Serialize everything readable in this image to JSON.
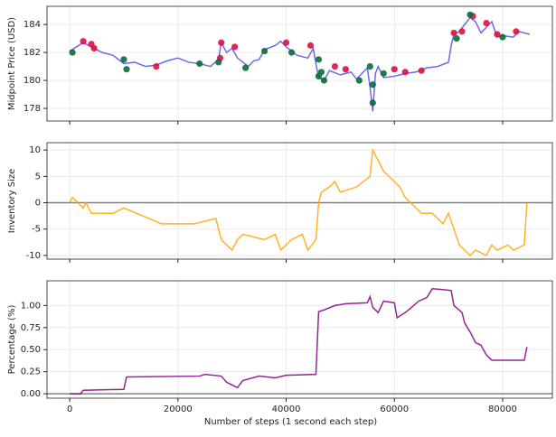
{
  "chart_data": [
    {
      "type": "line",
      "y_label": "Midpoint Price (USD)",
      "color": "#5050e8",
      "x": [
        0,
        2500,
        4000,
        6000,
        8000,
        10000,
        12000,
        14000,
        16000,
        18000,
        20000,
        22000,
        24000,
        26000,
        27500,
        28000,
        29000,
        30000,
        31000,
        32000,
        33000,
        34000,
        35000,
        36000,
        38000,
        39000,
        40000,
        41000,
        42000,
        44000,
        45000,
        45500,
        46000,
        47000,
        48000,
        50000,
        52000,
        53000,
        54000,
        55000,
        55500,
        56000,
        56500,
        57000,
        58000,
        60000,
        62000,
        64000,
        66000,
        68000,
        70000,
        70500,
        71000,
        72000,
        73000,
        74000,
        75000,
        76000,
        77000,
        78000,
        79000,
        80000,
        82000,
        83000,
        84000,
        85000
      ],
      "values": [
        182.1,
        182.7,
        182.4,
        182,
        181.8,
        181.2,
        181.3,
        181,
        181.1,
        181.4,
        181.6,
        181.3,
        181.2,
        181,
        181.5,
        182.7,
        182,
        182.3,
        181.6,
        181.3,
        181,
        181.4,
        181.5,
        182.2,
        182.5,
        182.8,
        182.4,
        182.1,
        181.8,
        181.6,
        182.3,
        181.2,
        180.2,
        180,
        180.7,
        180.4,
        180.6,
        180.1,
        180.5,
        180.9,
        179.5,
        177.8,
        180.5,
        181,
        180.2,
        180.3,
        180.5,
        180.6,
        180.9,
        181,
        181.3,
        182.5,
        183.3,
        183.5,
        184,
        184.5,
        184.2,
        183.4,
        183.8,
        184.2,
        183.1,
        183.2,
        183.1,
        183.5,
        183.4,
        183.3
      ],
      "markers": [
        {
          "color": "#dd1144",
          "x": [
            2500,
            4000,
            4500,
            16000,
            28000,
            27800,
            30500,
            40000,
            44500,
            49000,
            51000,
            60000,
            62000,
            65000,
            71000,
            72500,
            74500,
            77000,
            79000,
            82500
          ],
          "values": [
            182.8,
            182.6,
            182.3,
            181,
            182.7,
            181.6,
            182.4,
            182.7,
            182.5,
            181,
            180.8,
            180.8,
            180.6,
            180.7,
            183.4,
            183.5,
            184.6,
            184.1,
            183.3,
            183.5
          ]
        },
        {
          "color": "#0b6b3a",
          "x": [
            500,
            10000,
            10500,
            24000,
            27500,
            32500,
            36000,
            41000,
            46000,
            46500,
            46000,
            47000,
            53500,
            55500,
            56000,
            56000,
            58000,
            71500,
            74000,
            80000
          ],
          "values": [
            182,
            181.5,
            180.8,
            181.2,
            181.3,
            180.9,
            182.1,
            182,
            180.3,
            180.6,
            181.5,
            180,
            180,
            181,
            179.7,
            178.4,
            180.5,
            183,
            184.7,
            183.1
          ]
        }
      ],
      "xlim": [
        -4200,
        89200
      ],
      "ylim": [
        177.1,
        185.3
      ],
      "xticks": [
        0,
        20000,
        40000,
        60000,
        80000
      ],
      "yticks": [
        178,
        180,
        182,
        184
      ],
      "grid": true
    },
    {
      "type": "line",
      "y_label": "Inventory Size",
      "color": "#ffa500",
      "x": [
        0,
        500,
        2500,
        3000,
        4000,
        8000,
        10000,
        17000,
        23000,
        27000,
        28000,
        29000,
        30000,
        31000,
        32000,
        36000,
        38000,
        39000,
        40000,
        41000,
        43000,
        44000,
        45500,
        46000,
        46500,
        48000,
        49000,
        50000,
        53000,
        55500,
        56000,
        57000,
        58000,
        59000,
        60000,
        61000,
        62000,
        63000,
        64000,
        65000,
        67000,
        69000,
        70000,
        71000,
        72000,
        73000,
        74000,
        75000,
        77000,
        78000,
        79000,
        81000,
        82000,
        84000,
        84500
      ],
      "values": [
        0,
        1,
        -1,
        0,
        -2,
        -2,
        -1,
        -4,
        -4,
        -3,
        -7,
        -8,
        -9,
        -7,
        -6,
        -7,
        -6,
        -9,
        -8,
        -7,
        -6,
        -9,
        -7,
        0,
        2,
        3,
        4,
        2,
        3,
        5,
        10,
        8,
        6,
        5,
        4,
        3,
        1,
        0,
        -1,
        -2,
        -2,
        -4,
        -2,
        -5,
        -8,
        -9,
        -10,
        -9,
        -10,
        -8,
        -9,
        -8,
        -9,
        -8,
        0
      ],
      "hline": 0,
      "xlim": [
        -4200,
        89200
      ],
      "ylim": [
        -10.7,
        11.4
      ],
      "xticks": [
        0,
        20000,
        40000,
        60000,
        80000
      ],
      "yticks": [
        -10,
        -5,
        0,
        5,
        10
      ],
      "grid": true
    },
    {
      "type": "line",
      "y_label": "Percentage (%)",
      "x_label": "Number of steps (1 second each step)",
      "color": "#800080",
      "x": [
        0,
        2000,
        2500,
        10000,
        10500,
        24000,
        25000,
        28000,
        29000,
        31000,
        32000,
        35000,
        38000,
        40000,
        45500,
        46000,
        47000,
        49000,
        51000,
        55000,
        55500,
        56000,
        57000,
        58000,
        60000,
        60500,
        62000,
        63000,
        64500,
        66000,
        67000,
        69000,
        70500,
        71000,
        72500,
        73000,
        74000,
        75000,
        76000,
        77000,
        78000,
        84000,
        84500
      ],
      "values": [
        0,
        0,
        0.04,
        0.05,
        0.19,
        0.2,
        0.22,
        0.2,
        0.13,
        0.07,
        0.15,
        0.2,
        0.18,
        0.21,
        0.22,
        0.93,
        0.95,
        1.0,
        1.02,
        1.03,
        1.1,
        0.98,
        0.92,
        1.05,
        1.03,
        0.86,
        0.92,
        0.97,
        1.05,
        1.09,
        1.19,
        1.18,
        1.17,
        1.0,
        0.92,
        0.8,
        0.7,
        0.58,
        0.55,
        0.44,
        0.38,
        0.38,
        0.53
      ],
      "hline": 0,
      "xlim": [
        -4200,
        89200
      ],
      "ylim": [
        -0.05,
        1.28
      ],
      "xticks": [
        0,
        20000,
        40000,
        60000,
        80000
      ],
      "yticks": [
        {
          "value": 0,
          "label": "0.00"
        },
        {
          "value": 0.25,
          "label": "0.25"
        },
        {
          "value": 0.5,
          "label": "0.50"
        },
        {
          "value": 0.75,
          "label": "0.75"
        },
        {
          "value": 1,
          "label": "1.00"
        }
      ],
      "grid": true
    }
  ]
}
